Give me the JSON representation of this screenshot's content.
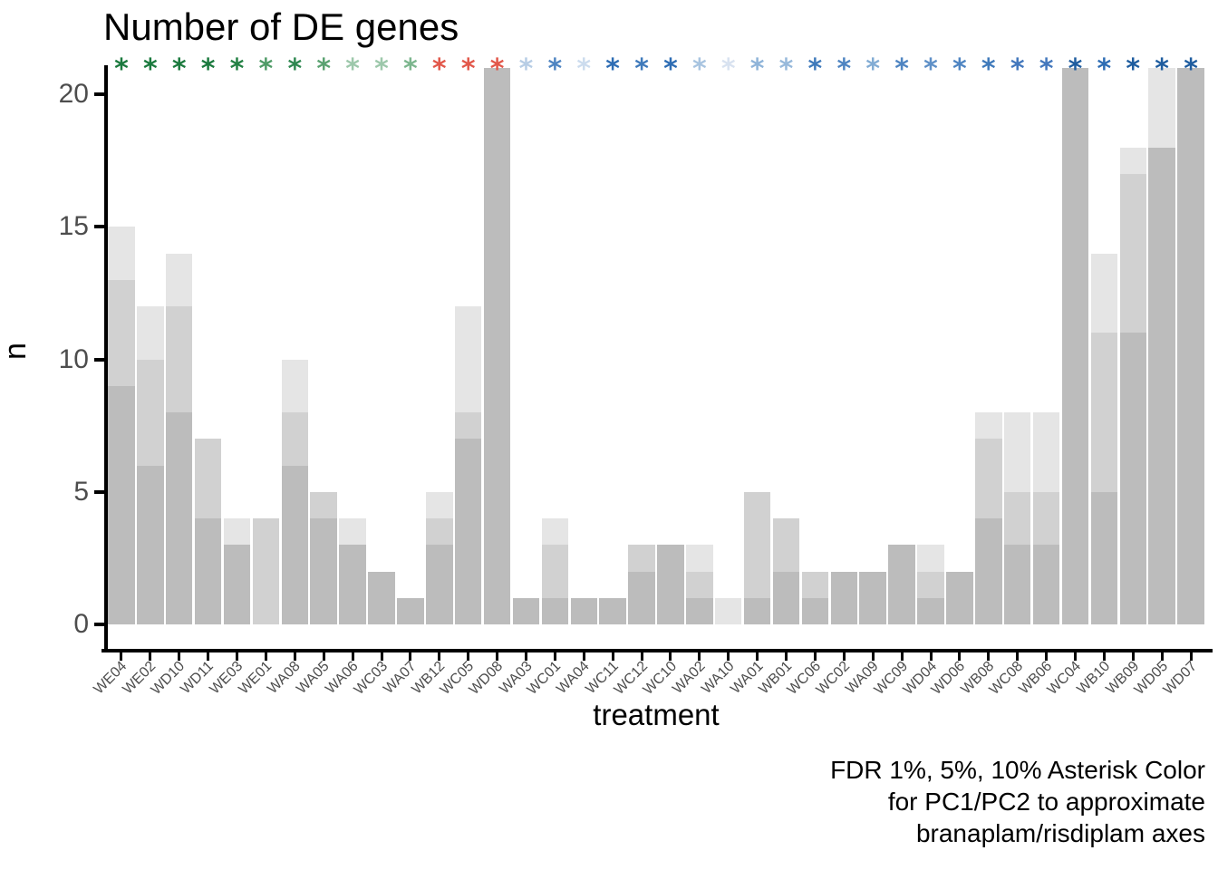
{
  "title": "Number of DE genes",
  "y_axis": {
    "label": "n",
    "ticks": [
      0,
      5,
      10,
      15,
      20
    ],
    "max": 21
  },
  "x_axis": {
    "label": "treatment"
  },
  "caption": {
    "lines": [
      "FDR 1%, 5%, 10% Asterisk Color",
      "for PC1/PC2 to approximate",
      "branaplam/risdiplam axes"
    ]
  },
  "colors": {
    "background": "#ffffff",
    "axis_line": "#000000",
    "tick_label": "#4d4d4d",
    "bar_fdr1": "#bcbcbc",
    "bar_fdr5": "#d1d1d1",
    "bar_fdr10": "#e5e5e5",
    "asterisk_green_dark": "#1b7a3e",
    "asterisk_red": "#e2574a",
    "asterisk_blue_dark": "#1f5d9f"
  },
  "chart_data": {
    "type": "bar",
    "title": "Number of DE genes",
    "xlabel": "treatment",
    "ylabel": "n",
    "ylim": [
      0,
      21
    ],
    "grid": false,
    "legend": "none",
    "bar_style": "three overlaid bars per treatment (FDR 1% darkest gray, FDR 5% medium gray, FDR 10% lightest gray); bars for WD08, WC04, WD05, WD07 are clipped at the top of the panel",
    "categories": [
      "WE04",
      "WE02",
      "WD10",
      "WD11",
      "WE03",
      "WE01",
      "WA08",
      "WA05",
      "WA06",
      "WC03",
      "WA07",
      "WB12",
      "WC05",
      "WD08",
      "WA03",
      "WC01",
      "WA04",
      "WC11",
      "WC12",
      "WC10",
      "WA02",
      "WA10",
      "WA01",
      "WB01",
      "WC06",
      "WC02",
      "WA09",
      "WC09",
      "WD04",
      "WD06",
      "WB08",
      "WC08",
      "WB06",
      "WC04",
      "WB10",
      "WB09",
      "WD05",
      "WD07"
    ],
    "series": [
      {
        "name": "FDR 1%",
        "values": [
          9,
          6,
          8,
          4,
          3,
          0,
          6,
          4,
          3,
          2,
          1,
          3,
          7,
          21,
          1,
          1,
          1,
          1,
          2,
          3,
          1,
          0,
          1,
          2,
          1,
          2,
          2,
          3,
          1,
          2,
          4,
          3,
          3,
          21,
          5,
          11,
          18,
          21
        ]
      },
      {
        "name": "FDR 5%",
        "values": [
          13,
          10,
          12,
          7,
          3,
          4,
          8,
          5,
          3,
          2,
          1,
          4,
          8,
          21,
          1,
          3,
          1,
          1,
          3,
          3,
          2,
          0,
          5,
          4,
          2,
          2,
          2,
          3,
          2,
          2,
          7,
          5,
          5,
          21,
          11,
          17,
          18,
          21
        ]
      },
      {
        "name": "FDR 10%",
        "values": [
          15,
          12,
          14,
          7,
          4,
          4,
          10,
          5,
          4,
          2,
          1,
          5,
          12,
          21,
          1,
          4,
          1,
          1,
          3,
          3,
          3,
          1,
          5,
          4,
          2,
          2,
          2,
          3,
          3,
          2,
          8,
          8,
          8,
          21,
          14,
          18,
          21,
          21
        ]
      }
    ],
    "clipped_at_top": [
      "WD08",
      "WC04",
      "WD05",
      "WD07"
    ],
    "asterisk_colors": [
      "#1b7a3e",
      "#1b7a3e",
      "#1b7a3e",
      "#1b7a3e",
      "#238144",
      "#4f9b67",
      "#2f8851",
      "#5aa271",
      "#9dc8ab",
      "#9dc8ab",
      "#7cb68e",
      "#e2574a",
      "#e2574a",
      "#e2574a",
      "#b7cde5",
      "#4f85c2",
      "#ccdcee",
      "#2e6db4",
      "#3f7abb",
      "#2e6db4",
      "#a8c4e0",
      "#d8e2f0",
      "#8fb4d9",
      "#97b9db",
      "#3f7abb",
      "#4f85c2",
      "#82acd4",
      "#4f85c2",
      "#5f90c7",
      "#4f85c2",
      "#3f7abb",
      "#4478bd",
      "#4478bd",
      "#1f5d9f",
      "#2e6db4",
      "#1f5d9f",
      "#1f5d9f",
      "#1f5d9f"
    ]
  }
}
